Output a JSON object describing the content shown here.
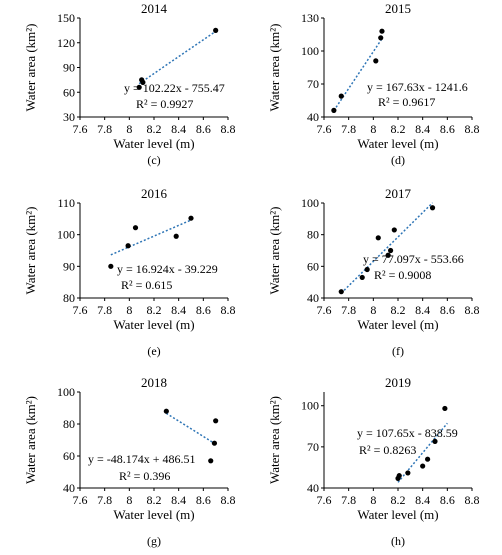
{
  "chart_data": [
    {
      "type": "scatter",
      "title": "2014",
      "panel_label": "(c)",
      "xlabel": "Water level (m)",
      "ylabel": "Water area (km²)",
      "xlim": [
        7.6,
        8.8
      ],
      "ylim": [
        30,
        150
      ],
      "xticks": [
        "7.6",
        "7.8",
        "8",
        "8.2",
        "8.4",
        "8.6",
        "8.8"
      ],
      "yticks": [
        "30",
        "60",
        "90",
        "120",
        "150"
      ],
      "points": [
        [
          8.08,
          66
        ],
        [
          8.1,
          75
        ],
        [
          8.11,
          72
        ],
        [
          8.7,
          135
        ]
      ],
      "trendline": {
        "slope": 102.22,
        "intercept": -755.47,
        "x_range": [
          8.08,
          8.7
        ]
      },
      "equation": "y = 102.22x - 755.47",
      "r2": "R² = 0.9927",
      "grid": false
    },
    {
      "type": "scatter",
      "title": "2015",
      "panel_label": "(d)",
      "xlabel": "Water level (m)",
      "ylabel": "Water area (km²)",
      "xlim": [
        7.6,
        8.8
      ],
      "ylim": [
        40,
        130
      ],
      "xticks": [
        "7.6",
        "7.8",
        "8",
        "8.2",
        "8.4",
        "8.6",
        "8.8"
      ],
      "yticks": [
        "40",
        "70",
        "100",
        "130"
      ],
      "points": [
        [
          7.68,
          46
        ],
        [
          7.74,
          59
        ],
        [
          8.02,
          91
        ],
        [
          8.06,
          112
        ],
        [
          8.07,
          118
        ]
      ],
      "trendline": {
        "slope": 167.63,
        "intercept": -1241.6,
        "x_range": [
          7.68,
          8.07
        ]
      },
      "equation": "y = 167.63x - 1241.6",
      "r2": "R² = 0.9617",
      "grid": false
    },
    {
      "type": "scatter",
      "title": "2016",
      "panel_label": "(e)",
      "xlabel": "Water level (m)",
      "ylabel": "Water area (km²)",
      "xlim": [
        7.6,
        8.8
      ],
      "ylim": [
        80,
        110
      ],
      "xticks": [
        "7.6",
        "7.8",
        "8",
        "8.2",
        "8.4",
        "8.6",
        "8.8"
      ],
      "yticks": [
        "80",
        "90",
        "100",
        "110"
      ],
      "points": [
        [
          7.85,
          90
        ],
        [
          7.99,
          96.5
        ],
        [
          8.05,
          102.2
        ],
        [
          8.38,
          99.5
        ],
        [
          8.5,
          105.2
        ]
      ],
      "trendline": {
        "slope": 16.924,
        "intercept": -39.229,
        "x_range": [
          7.85,
          8.5
        ]
      },
      "equation": "y = 16.924x - 39.229",
      "r2": "R² = 0.615",
      "grid": false
    },
    {
      "type": "scatter",
      "title": "2017",
      "panel_label": "(f)",
      "xlabel": "Water level (m)",
      "ylabel": "Water area (km²)",
      "xlim": [
        7.6,
        8.8
      ],
      "ylim": [
        40,
        100
      ],
      "xticks": [
        "7.6",
        "7.8",
        "8",
        "8.2",
        "8.4",
        "8.6",
        "8.8"
      ],
      "yticks": [
        "40",
        "60",
        "80",
        "100"
      ],
      "points": [
        [
          7.74,
          44
        ],
        [
          7.91,
          53
        ],
        [
          7.95,
          58
        ],
        [
          8.04,
          78
        ],
        [
          8.12,
          67
        ],
        [
          8.14,
          70
        ],
        [
          8.17,
          83
        ],
        [
          8.48,
          97
        ]
      ],
      "trendline": {
        "slope": 77.097,
        "intercept": -553.66,
        "x_range": [
          7.74,
          8.48
        ]
      },
      "equation": "y = 77.097x - 553.66",
      "r2": "R² = 0.9008",
      "grid": false
    },
    {
      "type": "scatter",
      "title": "2018",
      "panel_label": "(g)",
      "xlabel": "Water level (m)",
      "ylabel": "Water area (km²)",
      "xlim": [
        7.6,
        8.8
      ],
      "ylim": [
        40,
        100
      ],
      "xticks": [
        "7.6",
        "7.8",
        "8",
        "8.2",
        "8.4",
        "8.6",
        "8.8"
      ],
      "yticks": [
        "40",
        "60",
        "80",
        "100"
      ],
      "points": [
        [
          8.3,
          88
        ],
        [
          8.66,
          57
        ],
        [
          8.69,
          68
        ],
        [
          8.7,
          82
        ]
      ],
      "trendline": {
        "slope": -48.174,
        "intercept": 486.51,
        "x_range": [
          8.3,
          8.7
        ]
      },
      "equation": "y = -48.174x + 486.51",
      "r2": "R² = 0.396",
      "grid": false
    },
    {
      "type": "scatter",
      "title": "2019",
      "panel_label": "(h)",
      "xlabel": "Water level (m)",
      "ylabel": "Water area (km²)",
      "xlim": [
        7.6,
        8.8
      ],
      "ylim": [
        40,
        110
      ],
      "xticks": [
        "7.6",
        "7.8",
        "8",
        "8.2",
        "8.4",
        "8.6",
        "8.8"
      ],
      "yticks": [
        "40",
        "70",
        "100"
      ],
      "points": [
        [
          8.2,
          47
        ],
        [
          8.21,
          49
        ],
        [
          8.28,
          51
        ],
        [
          8.4,
          56
        ],
        [
          8.44,
          61
        ],
        [
          8.5,
          74
        ],
        [
          8.58,
          98
        ]
      ],
      "trendline": {
        "slope": 107.65,
        "intercept": -838.59,
        "x_range": [
          8.2,
          8.6
        ]
      },
      "equation": "y = 107.65x - 838.59",
      "r2": "R² = 0.8263",
      "grid": false
    }
  ]
}
